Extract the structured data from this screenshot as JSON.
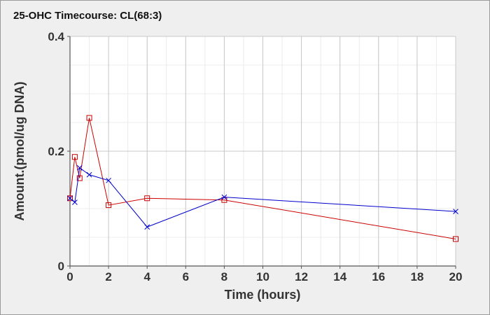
{
  "chart_data": {
    "type": "line",
    "title": "25-OHC Timecourse: CL(68:3)",
    "xlabel": "Time (hours)",
    "ylabel": "Amount.(pmol/ug DNA)",
    "xlim": [
      0,
      20
    ],
    "ylim": [
      0,
      0.4
    ],
    "xticks": [
      0,
      2,
      4,
      6,
      8,
      10,
      12,
      14,
      16,
      18,
      20
    ],
    "xtick_labels": [
      "0",
      "2",
      "4",
      "6",
      "8",
      "10",
      "12",
      "14",
      "16",
      "18",
      "20"
    ],
    "yticks": [
      0,
      0.2,
      0.4
    ],
    "ytick_labels": [
      "0",
      "0.2",
      "0.4"
    ],
    "grid": true,
    "series": [
      {
        "marker": "square",
        "color": "#cc0000",
        "x": [
          0,
          0.25,
          0.5,
          1,
          2,
          4,
          8,
          20
        ],
        "y": [
          0.118,
          0.19,
          0.153,
          0.258,
          0.106,
          0.118,
          0.115,
          0.047
        ]
      },
      {
        "marker": "x",
        "color": "#0000cc",
        "x": [
          0,
          0.25,
          0.5,
          1,
          2,
          4,
          8,
          20
        ],
        "y": [
          0.118,
          0.111,
          0.171,
          0.159,
          0.149,
          0.068,
          0.12,
          0.095
        ]
      }
    ]
  }
}
